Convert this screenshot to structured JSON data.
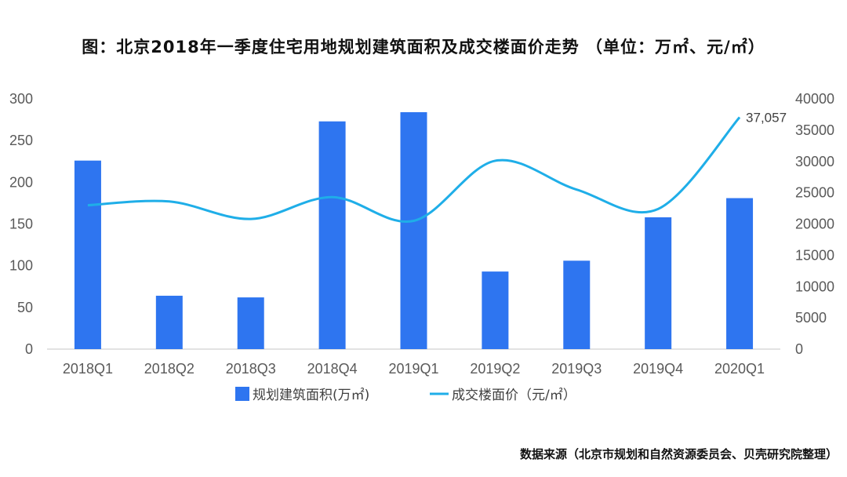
{
  "title": "图：北京2018年一季度住宅用地规划建筑面积及成交楼面价走势 （单位：万㎡、元/㎡）",
  "source": "数据来源（北京市规划和自然资源委员会、贝壳研究院整理）",
  "colors": {
    "bar": "#2e75f0",
    "line": "#1faee8",
    "axis": "#d9d9d9"
  },
  "chart_data": {
    "type": "bar",
    "categories": [
      "2018Q1",
      "2018Q2",
      "2018Q3",
      "2018Q4",
      "2019Q1",
      "2019Q2",
      "2019Q3",
      "2019Q4",
      "2020Q1"
    ],
    "series": [
      {
        "name": "规划建筑面积(万㎡)",
        "type": "bar",
        "axis": "left",
        "values": [
          226,
          64,
          62,
          273,
          284,
          93,
          106,
          158,
          181
        ]
      },
      {
        "name": "成交楼面价（元/㎡）",
        "type": "line",
        "axis": "right",
        "values": [
          23000,
          23600,
          20800,
          24300,
          20500,
          30100,
          25500,
          22400,
          37057
        ]
      }
    ],
    "y_left": {
      "min": 0,
      "max": 300,
      "ticks": [
        0,
        50,
        100,
        150,
        200,
        250,
        300
      ]
    },
    "y_right": {
      "min": 0,
      "max": 40000,
      "ticks": [
        0,
        5000,
        10000,
        15000,
        20000,
        25000,
        30000,
        35000,
        40000
      ]
    },
    "annotations": [
      {
        "series": 1,
        "index": 8,
        "text": "37,057"
      }
    ],
    "legend": "bottom",
    "grid": false
  }
}
